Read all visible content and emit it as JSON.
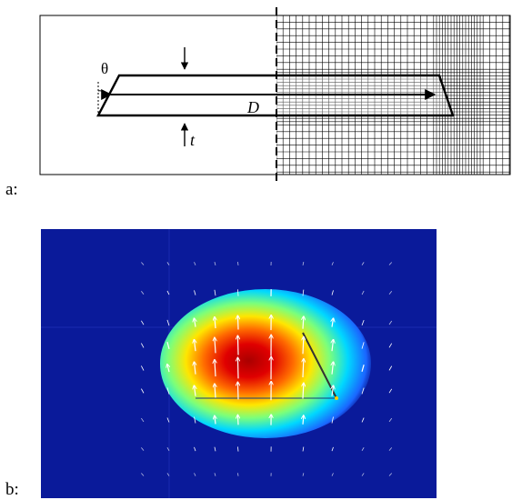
{
  "panel_a": {
    "label": "a:",
    "symbols": {
      "theta": "θ",
      "D": "D",
      "t": "t"
    }
  },
  "panel_b": {
    "label": "b:"
  },
  "colors": {
    "background_field": "#0a1a9a",
    "hot": "#cc0000",
    "warm": "#ffee00",
    "mid": "#00ccff",
    "vector_color": "#ffffff",
    "line_color": "#000000"
  }
}
